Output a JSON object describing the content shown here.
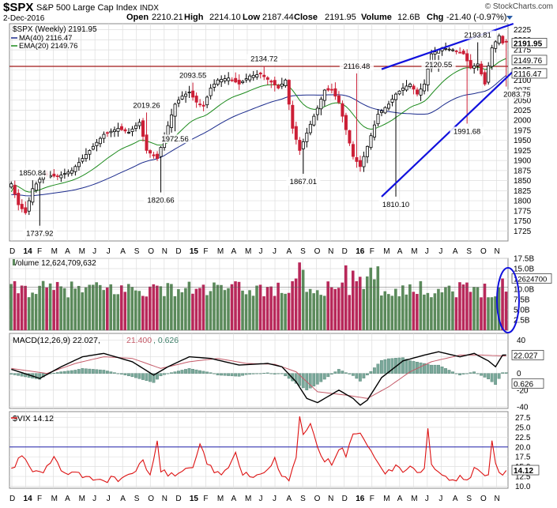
{
  "header": {
    "symbol": "$SPX",
    "name": "S&P 500 Large Cap Index",
    "exchange": "INDX",
    "date": "2-Dec-2016",
    "open_label": "Open",
    "open": "2210.21",
    "high_label": "High",
    "high": "2214.10",
    "low_label": "Low",
    "low": "2187.44",
    "close_label": "Close",
    "close": "2191.95",
    "volume_label": "Volume",
    "volume": "12.6B",
    "chg_label": "Chg",
    "chg": "-21.40 (-0.97%)",
    "watermark": "© StockCharts.com"
  },
  "colors": {
    "up": "#4a7a4a",
    "down": "#cc1f36",
    "ma40": "#1a2a8c",
    "ema20": "#1c8a1c",
    "hline": "#a01818",
    "trend": "#1010dd",
    "vix": "#dd1111",
    "macd": "#000000",
    "signal": "#c45a68",
    "hist": "#7aa89a",
    "grid": "#dddddd"
  },
  "time_axis": {
    "labels": [
      "D",
      "14",
      "F",
      "M",
      "A",
      "M",
      "J",
      "J",
      "A",
      "S",
      "O",
      "N",
      "D",
      "15",
      "F",
      "M",
      "A",
      "M",
      "J",
      "J",
      "A",
      "S",
      "O",
      "N",
      "D",
      "16",
      "F",
      "M",
      "A",
      "M",
      "J",
      "J",
      "A",
      "S",
      "O",
      "N"
    ],
    "bold": [
      "14",
      "15",
      "16"
    ]
  },
  "legends": {
    "price": "$SPX (Weekly) 2191.95",
    "ma": "MA(40) 2116.47",
    "ema": "EMA(20) 2149.76",
    "volume": "Volume 12,624,709,632",
    "macd_name": "MACD(12,26,9)",
    "macd_v1": "22.027",
    "macd_v2": "21.400",
    "macd_v3": "0.626",
    "vix": "$VIX 14.12"
  },
  "chart_data": [
    {
      "type": "candlestick",
      "title": "$SPX (Weekly)",
      "ylim": [
        1700,
        2240
      ],
      "y_ticks": [
        1725,
        1750,
        1775,
        1800,
        1825,
        1850,
        1875,
        1900,
        1925,
        1950,
        1975,
        2000,
        2025,
        2050,
        2075,
        2100,
        2125,
        2150,
        2175,
        2200,
        2225
      ],
      "close_anchors": [
        [
          0,
          1842
        ],
        [
          2,
          1790
        ],
        [
          4,
          1770
        ],
        [
          6,
          1830
        ],
        [
          9,
          1865
        ],
        [
          13,
          1860
        ],
        [
          17,
          1875
        ],
        [
          22,
          1925
        ],
        [
          26,
          1965
        ],
        [
          30,
          1980
        ],
        [
          33,
          1970
        ],
        [
          36,
          1995
        ],
        [
          38,
          1925
        ],
        [
          41,
          1905
        ],
        [
          43,
          1960
        ],
        [
          46,
          2040
        ],
        [
          48,
          2060
        ],
        [
          50,
          2070
        ],
        [
          52,
          2045
        ],
        [
          54,
          2035
        ],
        [
          56,
          2080
        ],
        [
          58,
          2100
        ],
        [
          61,
          2105
        ],
        [
          64,
          2090
        ],
        [
          67,
          2110
        ],
        [
          70,
          2115
        ],
        [
          73,
          2095
        ],
        [
          75,
          2080
        ],
        [
          77,
          2100
        ],
        [
          79,
          1980
        ],
        [
          81,
          1925
        ],
        [
          84,
          1990
        ],
        [
          86,
          2030
        ],
        [
          88,
          2075
        ],
        [
          90,
          2075
        ],
        [
          92,
          2045
        ],
        [
          93,
          2010
        ],
        [
          96,
          1910
        ],
        [
          98,
          1885
        ],
        [
          100,
          1935
        ],
        [
          103,
          2015
        ],
        [
          106,
          2040
        ],
        [
          108,
          2065
        ],
        [
          110,
          2080
        ],
        [
          112,
          2090
        ],
        [
          114,
          2065
        ],
        [
          116,
          2090
        ],
        [
          118,
          2165
        ],
        [
          121,
          2180
        ],
        [
          124,
          2175
        ],
        [
          127,
          2165
        ],
        [
          129,
          2130
        ],
        [
          131,
          2140
        ],
        [
          133,
          2090
        ],
        [
          135,
          2180
        ],
        [
          137,
          2210
        ],
        [
          138,
          2192
        ]
      ],
      "ma40": "2116.47",
      "ema20": "2149.76",
      "annotations": [
        {
          "label": "1850.84",
          "x": 6,
          "y": 1850.84,
          "pos": "above"
        },
        {
          "label": "1737.92",
          "x": 8,
          "y": 1737.92,
          "pos": "below"
        },
        {
          "label": "2019.26",
          "x": 38,
          "y": 2019.26,
          "pos": "above"
        },
        {
          "label": "1972.56",
          "x": 46,
          "y": 1972.56,
          "pos": "below"
        },
        {
          "label": "2093.55",
          "x": 51,
          "y": 2093.55,
          "pos": "above"
        },
        {
          "label": "1820.66",
          "x": 42,
          "y": 1820.66,
          "pos": "below"
        },
        {
          "label": "2134.72",
          "x": 71,
          "y": 2134.72,
          "pos": "above"
        },
        {
          "label": "1867.01",
          "x": 82,
          "y": 1867.01,
          "pos": "below"
        },
        {
          "label": "2116.48",
          "x": 97,
          "y": 2116.48,
          "pos": "above"
        },
        {
          "label": "1810.10",
          "x": 108,
          "y": 1810.1,
          "pos": "below"
        },
        {
          "label": "2120.55",
          "x": 120,
          "y": 2120.55,
          "pos": "above"
        },
        {
          "label": "1991.68",
          "x": 128,
          "y": 1991.68,
          "pos": "below"
        },
        {
          "label": "2193.81",
          "x": 131,
          "y": 2193.81,
          "pos": "above"
        },
        {
          "label": "2083.79",
          "x": 142,
          "y": 2083.79,
          "pos": "below"
        }
      ],
      "right_labels": [
        {
          "text": "2191.95",
          "value": 2191.95,
          "box": true
        },
        {
          "text": "2149.76",
          "value": 2149.76,
          "box": true
        },
        {
          "text": "2116.47",
          "value": 2116.47,
          "box": true
        }
      ],
      "hline": 2134,
      "trendlines": [
        {
          "from": [
            104,
            2127
          ],
          "to": [
            141,
            2240
          ]
        },
        {
          "from": [
            104,
            1810
          ],
          "to": [
            141,
            2122
          ]
        }
      ]
    },
    {
      "type": "bar",
      "title": "Volume",
      "ylim": [
        0,
        17.5
      ],
      "y_ticks": [
        2.5,
        5.0,
        7.5,
        10.0,
        12.5,
        15.0,
        17.5
      ],
      "tick_labels": [
        "2.5B",
        "5.0B",
        "7.5B",
        "10.0B",
        "12.5B",
        "15.0B",
        "17.5B"
      ],
      "last_value_label": "12624700",
      "avg_level": 10.5,
      "highlight": "last bars circled"
    },
    {
      "type": "line",
      "title": "MACD(12,26,9)",
      "ylim": [
        -42,
        48
      ],
      "y_ticks": [
        -40,
        -20,
        0,
        20,
        40
      ],
      "tick_labels": [
        "-40",
        "-20",
        "0",
        "20",
        "40"
      ],
      "macd_anchors": [
        [
          0,
          5
        ],
        [
          8,
          -6
        ],
        [
          14,
          8
        ],
        [
          20,
          20
        ],
        [
          26,
          24
        ],
        [
          34,
          14
        ],
        [
          40,
          -2
        ],
        [
          44,
          8
        ],
        [
          50,
          20
        ],
        [
          56,
          18
        ],
        [
          64,
          10
        ],
        [
          72,
          12
        ],
        [
          76,
          8
        ],
        [
          80,
          -10
        ],
        [
          83,
          -30
        ],
        [
          86,
          -35
        ],
        [
          92,
          -20
        ],
        [
          96,
          -30
        ],
        [
          98,
          -38
        ],
        [
          100,
          -32
        ],
        [
          104,
          -5
        ],
        [
          110,
          15
        ],
        [
          116,
          22
        ],
        [
          120,
          26
        ],
        [
          126,
          20
        ],
        [
          130,
          24
        ],
        [
          134,
          15
        ],
        [
          136,
          8
        ],
        [
          138,
          22
        ]
      ],
      "signal_anchors": [
        [
          0,
          6
        ],
        [
          10,
          0
        ],
        [
          18,
          12
        ],
        [
          26,
          20
        ],
        [
          34,
          18
        ],
        [
          42,
          6
        ],
        [
          50,
          14
        ],
        [
          58,
          18
        ],
        [
          66,
          12
        ],
        [
          74,
          11
        ],
        [
          80,
          2
        ],
        [
          86,
          -22
        ],
        [
          94,
          -26
        ],
        [
          100,
          -30
        ],
        [
          106,
          -16
        ],
        [
          112,
          2
        ],
        [
          118,
          14
        ],
        [
          126,
          22
        ],
        [
          132,
          22
        ],
        [
          138,
          21
        ]
      ],
      "value_labels": [
        "22.027",
        "0.626"
      ]
    },
    {
      "type": "line",
      "title": "$VIX",
      "ylim": [
        9.5,
        29
      ],
      "y_ticks": [
        10.0,
        12.5,
        15.0,
        17.5,
        20.0,
        22.5,
        25.0,
        27.5
      ],
      "tick_labels": [
        "10.0",
        "12.5",
        "15.0",
        "17.5",
        "20.0",
        "22.5",
        "25.0",
        "27.5"
      ],
      "hline": 20,
      "last_value": "14.12",
      "anchors": [
        [
          0,
          14
        ],
        [
          3,
          18
        ],
        [
          5,
          15
        ],
        [
          8,
          13
        ],
        [
          12,
          17
        ],
        [
          14,
          14
        ],
        [
          18,
          13
        ],
        [
          22,
          12
        ],
        [
          26,
          11.5
        ],
        [
          30,
          12
        ],
        [
          33,
          12.5
        ],
        [
          35,
          14
        ],
        [
          37,
          16
        ],
        [
          39,
          13
        ],
        [
          41,
          21
        ],
        [
          42,
          14
        ],
        [
          44,
          13
        ],
        [
          47,
          13
        ],
        [
          49,
          15
        ],
        [
          51,
          14
        ],
        [
          53,
          20
        ],
        [
          55,
          16
        ],
        [
          57,
          14
        ],
        [
          59,
          13.5
        ],
        [
          61,
          15
        ],
        [
          63,
          18
        ],
        [
          65,
          13.5
        ],
        [
          68,
          13
        ],
        [
          70,
          13
        ],
        [
          72,
          15
        ],
        [
          74,
          17
        ],
        [
          76,
          13
        ],
        [
          78,
          12
        ],
        [
          80,
          17
        ],
        [
          81,
          27
        ],
        [
          82,
          23
        ],
        [
          84,
          26
        ],
        [
          86,
          20
        ],
        [
          88,
          17
        ],
        [
          90,
          16
        ],
        [
          92,
          20
        ],
        [
          94,
          18
        ],
        [
          96,
          24
        ],
        [
          98,
          23
        ],
        [
          100,
          21
        ],
        [
          102,
          17
        ],
        [
          104,
          14
        ],
        [
          106,
          13.5
        ],
        [
          108,
          15
        ],
        [
          110,
          14
        ],
        [
          112,
          15
        ],
        [
          114,
          13
        ],
        [
          116,
          15
        ],
        [
          117,
          25.5
        ],
        [
          118,
          15
        ],
        [
          120,
          13
        ],
        [
          124,
          12
        ],
        [
          128,
          12
        ],
        [
          130,
          14
        ],
        [
          132,
          13
        ],
        [
          134,
          13
        ],
        [
          135,
          22
        ],
        [
          136,
          16
        ],
        [
          137,
          13
        ],
        [
          139,
          14
        ]
      ]
    }
  ]
}
